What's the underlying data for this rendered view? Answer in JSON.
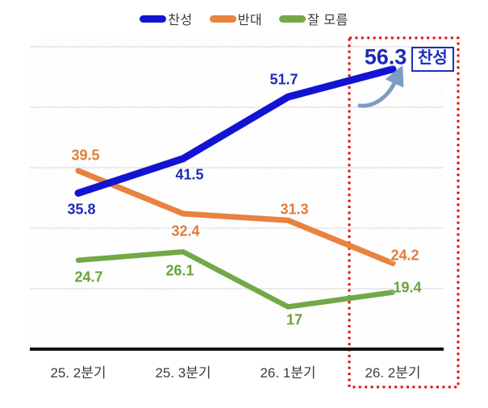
{
  "chart_data": {
    "type": "line",
    "title": "",
    "categories": [
      "25. 2분기",
      "25. 3분기",
      "26. 1분기",
      "26. 2분기"
    ],
    "series": [
      {
        "name": "찬성",
        "color": "#1313d4",
        "label_color": "#1f2ab8",
        "values": [
          35.8,
          41.5,
          51.7,
          56.3
        ]
      },
      {
        "name": "반대",
        "color": "#e8823e",
        "label_color": "#e07d38",
        "values": [
          39.5,
          32.4,
          31.3,
          24.2
        ]
      },
      {
        "name": "잘 모름",
        "color": "#72a848",
        "label_color": "#69a13c",
        "values": [
          24.7,
          26.1,
          17,
          19.4
        ]
      }
    ],
    "ylim": [
      10,
      60
    ],
    "y_gridline_step": 10,
    "grid": "horizontal",
    "legend_position": "top",
    "highlighted_category": "26. 2분기",
    "highlighted_final_value": 56.3
  },
  "annotation": {
    "label": "찬성",
    "border_color": "#1b2ec0",
    "arrow_color": "#7d9cc4"
  },
  "highlight": {
    "border_color": "#dd0b0b",
    "style": "dotted-square"
  },
  "colors": {
    "axis": "#111111",
    "gridline": "#d9d9d9",
    "x_label": "#3c3c3c"
  }
}
